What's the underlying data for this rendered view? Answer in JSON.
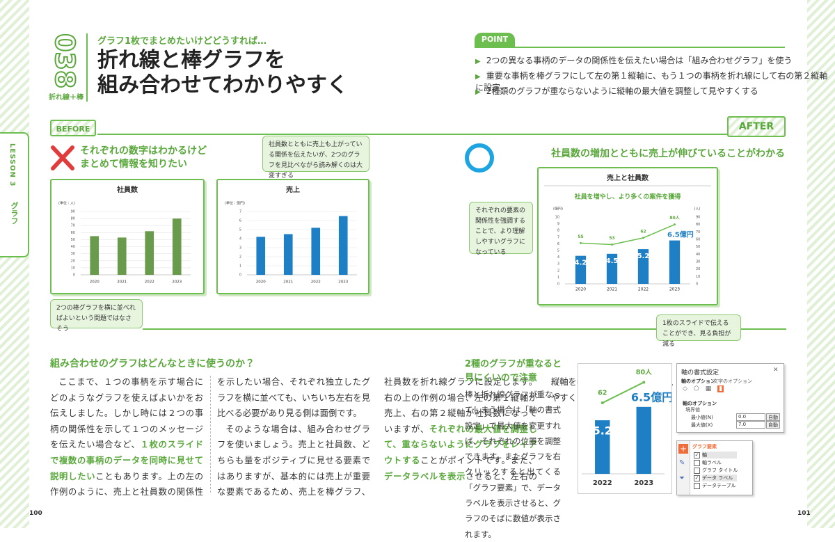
{
  "side_tab": {
    "lesson": "LESSON 3",
    "topic": "グラフ"
  },
  "header": {
    "number": "038",
    "tag": "折れ線＋棒",
    "subtitle": "グラフ1枚でまとめたいけどどうすれば…",
    "title": [
      "折れ線と棒グラフを",
      "組み合わせてわかりやすく"
    ]
  },
  "point": {
    "label": "POINT",
    "items": [
      "2つの異なる事柄のデータの関係性を伝えたい場合は「組み合わせグラフ」を使う",
      "重要な事柄を棒グラフにして左の第１縦軸に、もう１つの事柄を折れ線にして右の第２縦軸に設定",
      "2種類のグラフが重ならないように縦軸の最大値を調整して見やすくする"
    ]
  },
  "before": {
    "label": "BEFORE",
    "heading": [
      "それぞれの数字はわかるけど",
      "まとめて情報を知りたい"
    ],
    "callouts": [
      "社員数とともに売上も上がっている関係を伝えたいが、2つのグラフを見比べながら読み解くのは大変すぎる",
      "2つの棒グラフを横に並べればよいという問題ではなさそう"
    ],
    "charts": [
      {
        "type": "bar",
        "title": "社員数",
        "unit_label": "(単位：人)",
        "categories": [
          "2020",
          "2021",
          "2022",
          "2023"
        ],
        "values": [
          55,
          53,
          62,
          80
        ],
        "color": "#6a9a4b",
        "ylim": [
          0,
          90
        ],
        "yticks": [
          0,
          10,
          20,
          30,
          40,
          50,
          60,
          70,
          80,
          90
        ],
        "grid": true
      },
      {
        "type": "bar",
        "title": "売上",
        "unit_label": "(単位：億円)",
        "categories": [
          "2020",
          "2021",
          "2022",
          "2023"
        ],
        "values": [
          4.2,
          4.5,
          5.2,
          6.5
        ],
        "color": "#1f7fc4",
        "ylim": [
          0,
          7
        ],
        "yticks": [
          0,
          1,
          2,
          3,
          4,
          5,
          6,
          7
        ],
        "grid": true
      }
    ]
  },
  "after": {
    "label": "AFTER",
    "heading": "社員数の増加とともに売上が伸びていることがわかる",
    "callouts": [
      "それぞれの要素の関係性を強調することで、より理解しやすいグラフになっている",
      "1枚のスライドで伝えることができ、見る負担が減る"
    ],
    "chart": {
      "type": "bar+line",
      "title": "売上と社員数",
      "subtitle": "社員を増やし、より多くの案件を獲得",
      "y_label": "(億円)",
      "y2_label": "(人)",
      "categories": [
        "2020",
        "2021",
        "2022",
        "2023"
      ],
      "series": [
        {
          "type": "bar",
          "color": "#1f7fc4",
          "values": [
            4.2,
            4.5,
            5.2,
            6.5
          ],
          "value_labels": [
            "4.2",
            "4.5",
            "5.2",
            "6.5億円"
          ]
        },
        {
          "type": "line",
          "axis": "y2",
          "color": "#6cbf4e",
          "values": [
            55,
            53,
            62,
            80
          ],
          "value_labels": [
            "55",
            "53",
            "62",
            "80人"
          ]
        }
      ],
      "ylim": [
        0,
        10
      ],
      "yticks": [
        0,
        1,
        2,
        3,
        4,
        5,
        6,
        7,
        8,
        9,
        10
      ],
      "y2lim": [
        0,
        90
      ],
      "y2ticks": [
        0,
        10,
        20,
        30,
        40,
        50,
        60,
        70,
        80,
        90
      ],
      "grid": false
    }
  },
  "section": {
    "heading": "組み合わせのグラフはどんなときに使うのか？",
    "body": [
      [
        {
          "text": "ここまで、１つの事柄を示す場合にどのようなグラフを使えばよいかをお伝えしました。しかし時には２つの事柄の関係性を示して１つのメッセージを伝えたい場合など、",
          "em": false
        },
        {
          "text": "１枚のスライドで複数の事柄のデータを同時に見せて説明したい",
          "em": true
        },
        {
          "text": "こともあります。上の左の作例のように、売上と社員数の関係性を示したい場合、それぞれ独立したグラフを横に並べても、いちいち左右を見比べる必要があり見る側は面倒です。",
          "em": false
        }
      ],
      [
        {
          "text": "そのような場合は、組み合わせグラフを使いましょう。売上と社員数、どちらも量をポジティブに見せる要素ではありますが、基本的には売上が重要な要素であるため、売上を棒グラフ、社員数を折れ線グラフに設定します。右の上の作例の場合、左の第１縦軸が売上、右の第２縦軸が社員数になっていますが、",
          "em": false
        },
        {
          "text": "それぞれの最大値を調整して、重ならないようにグラフをレイアウトする",
          "em": true
        },
        {
          "text": "ことがポイントです。また、",
          "em": false
        },
        {
          "text": "データラベルを表示",
          "em": true
        },
        {
          "text": "させると、左右の縦軸を参照しなくてもよいので、より見やすくなるでしょう。",
          "em": false
        }
      ]
    ]
  },
  "tip": {
    "heading": [
      "2種のグラフが重なると",
      "見にくいので注意"
    ],
    "body": "棒と折れ線グラフが重なってしまう場合は「軸の書式設定」で最大値を変更すれば、それぞれの位置を調整できます。またグラフを右クリックすると出てくる「グラフ要素」で、データラベルを表示させると、グラフのそばに数値が表示されます。",
    "zoom": {
      "type": "bar+line",
      "categories": [
        "2022",
        "2023"
      ],
      "series": [
        {
          "type": "bar",
          "color": "#1f7fc4",
          "values": [
            5.2,
            6.5
          ],
          "value_labels": [
            "5.2",
            "6.5億円"
          ]
        },
        {
          "type": "line",
          "axis": "y2",
          "color": "#6cbf4e",
          "values": [
            62,
            80
          ],
          "value_labels": [
            "62",
            "80人"
          ]
        }
      ]
    },
    "axis_dialog": {
      "title": "軸の書式設定",
      "tabs": [
        "軸のオプション",
        "文字のオプション"
      ],
      "section": "軸のオプション",
      "group": "境界値",
      "rows": [
        {
          "label": "最小値(N)",
          "value": "0.0",
          "button": "自動"
        },
        {
          "label": "最大値(X)",
          "value": "7.0",
          "button": "自動"
        }
      ]
    },
    "elements_panel": {
      "title": "グラフ要素",
      "items": [
        {
          "label": "軸",
          "checked": true
        },
        {
          "label": "軸ラベル",
          "checked": false
        },
        {
          "label": "グラフ タイトル",
          "checked": false
        },
        {
          "label": "データ ラベル",
          "checked": true
        },
        {
          "label": "データテーブル",
          "checked": false
        }
      ]
    }
  },
  "page_numbers": [
    "100",
    "101"
  ]
}
